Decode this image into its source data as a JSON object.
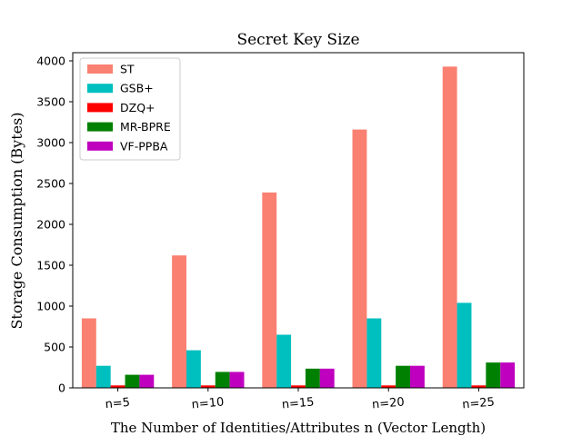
{
  "chart_data": {
    "type": "bar",
    "title": "Secret Key Size",
    "xlabel": "The Number of Identities/Attributes n (Vector Length)",
    "ylabel": "Storage Consumption (Bytes)",
    "categories": [
      "n=5",
      "n=10",
      "n=15",
      "n=20",
      "n=25"
    ],
    "ylim": [
      0,
      4100
    ],
    "yticks": [
      0,
      500,
      1000,
      1500,
      2000,
      2500,
      3000,
      3500,
      4000
    ],
    "legend_position": "top-left",
    "grid": false,
    "series": [
      {
        "name": "ST",
        "color": "#fa8072",
        "values": [
          850,
          1620,
          2390,
          3160,
          3930
        ]
      },
      {
        "name": "GSB+",
        "color": "#00bfbf",
        "values": [
          270,
          460,
          650,
          850,
          1040
        ]
      },
      {
        "name": "DZQ+",
        "color": "#ff0000",
        "values": [
          30,
          30,
          30,
          30,
          30
        ]
      },
      {
        "name": "MR-BPRE",
        "color": "#008000",
        "values": [
          160,
          195,
          235,
          270,
          310
        ]
      },
      {
        "name": "VF-PPBA",
        "color": "#bf00bf",
        "values": [
          160,
          195,
          235,
          270,
          310
        ]
      }
    ]
  }
}
